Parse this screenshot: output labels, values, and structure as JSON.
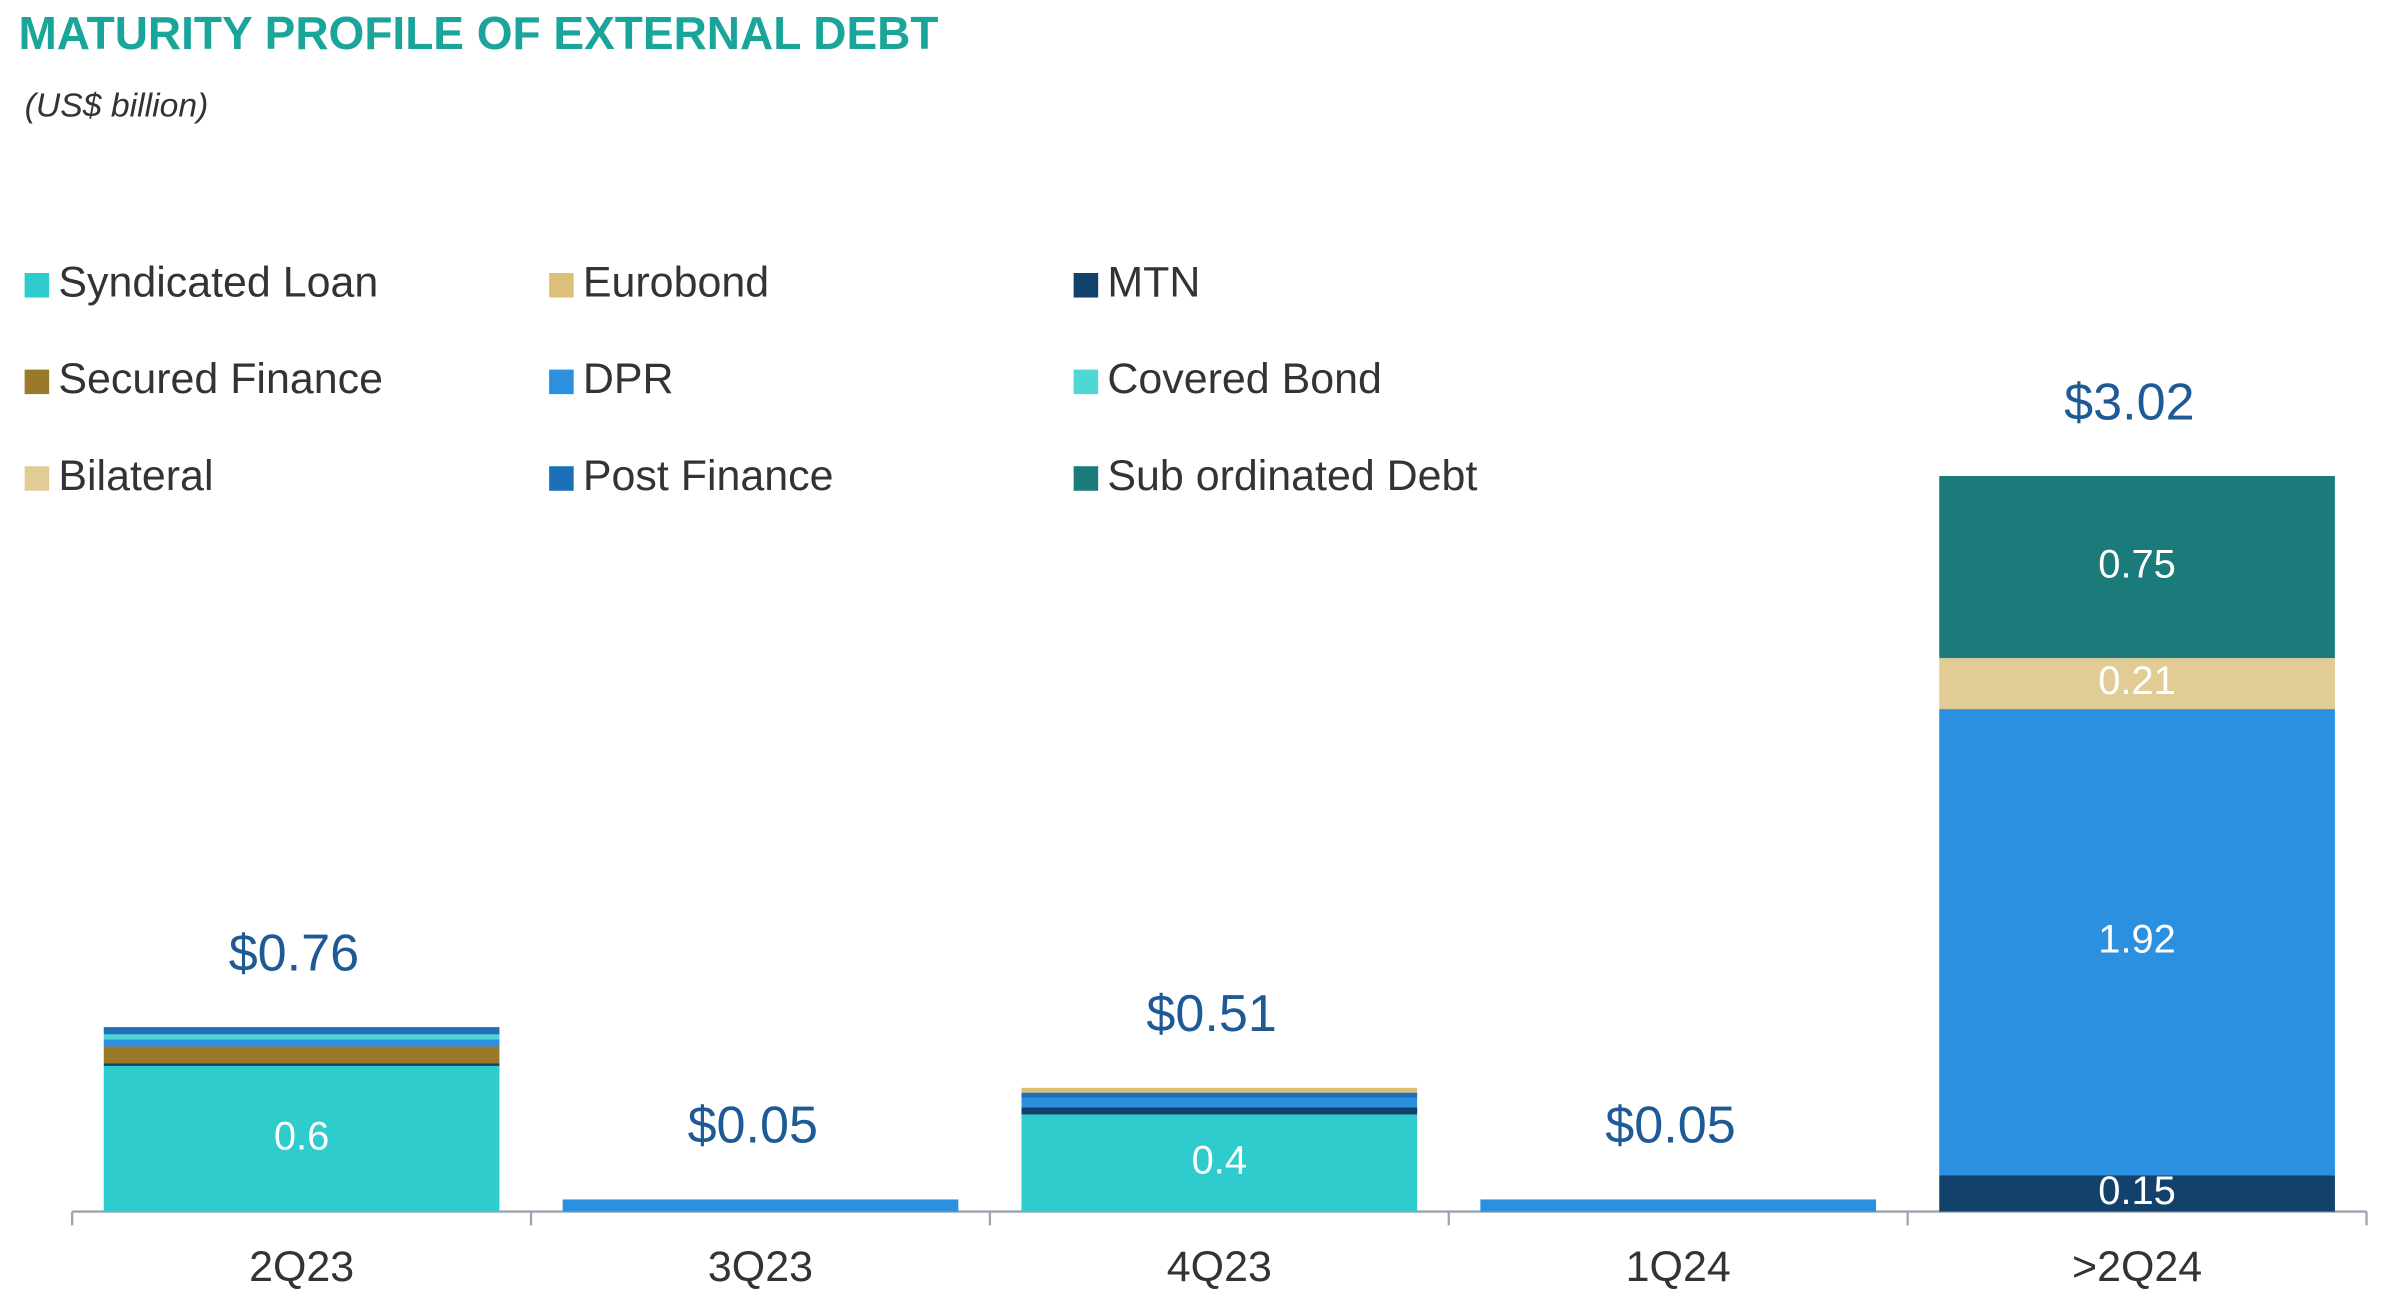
{
  "chart_data": {
    "type": "stacked_bar",
    "title": "MATURITY PROFILE OF EXTERNAL DEBT",
    "subtitle": "(US$ billion)",
    "categories": [
      "2Q23",
      "3Q23",
      "4Q23",
      "1Q24",
      ">2Q24"
    ],
    "series": [
      {
        "name": "Syndicated Loan",
        "color": "#2ecccc",
        "values": [
          0.6,
          0,
          0.4,
          0,
          0
        ]
      },
      {
        "name": "Eurobond",
        "color": "#dcc07a",
        "values": [
          0,
          0,
          0.02,
          0,
          0
        ]
      },
      {
        "name": "MTN",
        "color": "#12416b",
        "values": [
          0.01,
          0,
          0.03,
          0,
          0.15
        ]
      },
      {
        "name": "Secured Finance",
        "color": "#9a7a2a",
        "values": [
          0.07,
          0,
          0,
          0,
          0
        ]
      },
      {
        "name": "DPR",
        "color": "#2b90e0",
        "values": [
          0.03,
          0.05,
          0.04,
          0.05,
          1.92
        ]
      },
      {
        "name": "Covered Bond",
        "color": "#4fd6d6",
        "values": [
          0.02,
          0,
          0,
          0,
          0
        ]
      },
      {
        "name": "Bilateral",
        "color": "#e2cc96",
        "values": [
          0,
          0,
          0,
          0,
          0.21
        ]
      },
      {
        "name": "Post Finance",
        "color": "#1d6fb8",
        "values": [
          0.03,
          0,
          0.02,
          0,
          0
        ]
      },
      {
        "name": "Sub ordinated Debt",
        "color": "#1b7b7a",
        "values": [
          0,
          0,
          0,
          0,
          0.75
        ]
      }
    ],
    "totals": [
      0.76,
      0.05,
      0.51,
      0.05,
      3.02
    ],
    "total_labels": [
      "$0.76",
      "$0.05",
      "$0.51",
      "$0.05",
      "$3.02"
    ],
    "ylim": [
      0,
      3.5
    ]
  }
}
